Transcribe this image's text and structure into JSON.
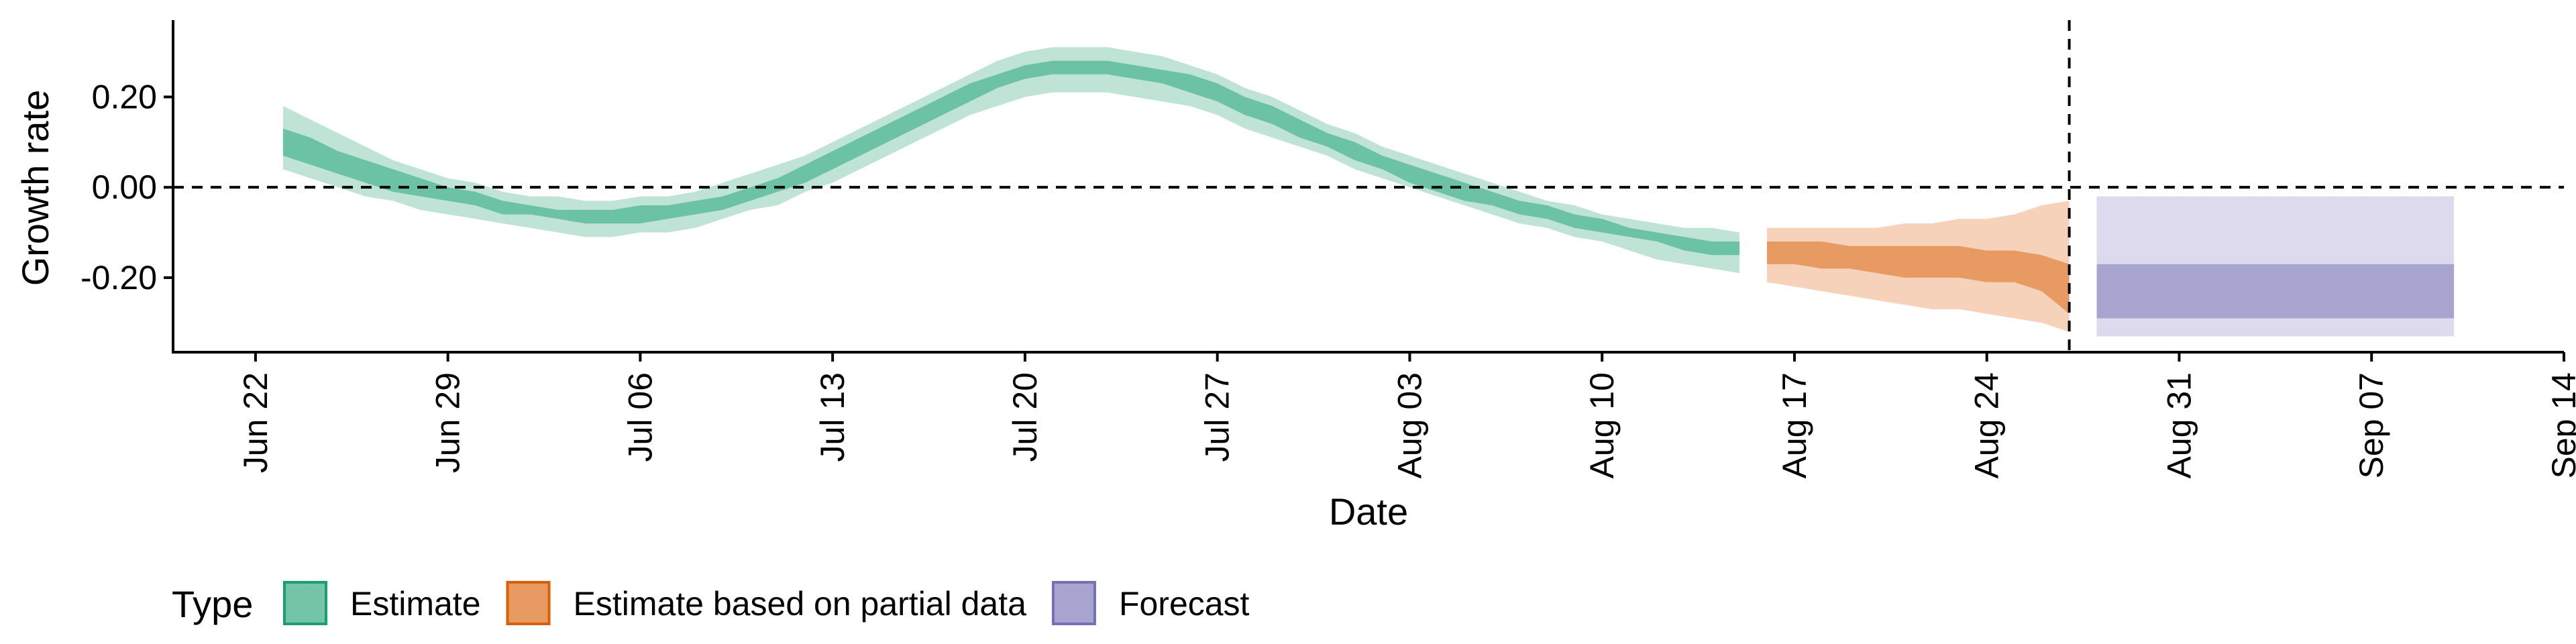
{
  "chart_data": {
    "type": "area",
    "xlabel": "Date",
    "ylabel": "Growth rate",
    "x_ticks": [
      "2020-06-22",
      "2020-06-29",
      "2020-07-06",
      "2020-07-13",
      "2020-07-20",
      "2020-07-27",
      "2020-08-03",
      "2020-08-10",
      "2020-08-17",
      "2020-08-24",
      "2020-08-31",
      "2020-09-07",
      "2020-09-14"
    ],
    "x_tick_labels": [
      "Jun 22",
      "Jun 29",
      "Jul 06",
      "Jul 13",
      "Jul 20",
      "Jul 27",
      "Aug 03",
      "Aug 10",
      "Aug 17",
      "Aug 24",
      "Aug 31",
      "Sep 07",
      "Sep 14"
    ],
    "y_ticks": [
      0.2,
      0.0,
      -0.2
    ],
    "y_tick_labels": [
      "0.20",
      "0.00",
      "-0.20"
    ],
    "xlim": [
      "2020-06-19",
      "2020-09-14"
    ],
    "ylim": [
      -0.365,
      0.37
    ],
    "grid": false,
    "reference_lines": [
      {
        "axis": "y",
        "value": 0.0,
        "style": "dashed"
      },
      {
        "axis": "x",
        "value": "2020-08-27",
        "style": "dashed"
      }
    ],
    "legend": {
      "title": "Type",
      "position": "bottom",
      "entries": [
        {
          "label": "Estimate",
          "fill": "#74c4a8",
          "stroke": "#1b9e77"
        },
        {
          "label": "Estimate based on partial data",
          "fill": "#e89a63",
          "stroke": "#d95f02"
        },
        {
          "label": "Forecast",
          "fill": "#a8a4d0",
          "stroke": "#7570b3"
        }
      ]
    },
    "series": [
      {
        "name": "Estimate",
        "color": "#1b9e77",
        "inner_color": "#6cc2a4",
        "outer_color": "#bfe3d5",
        "points": [
          {
            "x": "2020-06-23",
            "outer": [
              0.04,
              0.18
            ],
            "inner": [
              0.07,
              0.13
            ]
          },
          {
            "x": "2020-06-24",
            "outer": [
              0.02,
              0.15
            ],
            "inner": [
              0.05,
              0.11
            ]
          },
          {
            "x": "2020-06-25",
            "outer": [
              0.0,
              0.12
            ],
            "inner": [
              0.03,
              0.08
            ]
          },
          {
            "x": "2020-06-26",
            "outer": [
              -0.02,
              0.09
            ],
            "inner": [
              0.01,
              0.06
            ]
          },
          {
            "x": "2020-06-27",
            "outer": [
              -0.03,
              0.06
            ],
            "inner": [
              -0.01,
              0.04
            ]
          },
          {
            "x": "2020-06-28",
            "outer": [
              -0.05,
              0.04
            ],
            "inner": [
              -0.02,
              0.02
            ]
          },
          {
            "x": "2020-06-29",
            "outer": [
              -0.06,
              0.02
            ],
            "inner": [
              -0.03,
              0.0
            ]
          },
          {
            "x": "2020-06-30",
            "outer": [
              -0.07,
              0.01
            ],
            "inner": [
              -0.04,
              -0.01
            ]
          },
          {
            "x": "2020-07-01",
            "outer": [
              -0.08,
              -0.01
            ],
            "inner": [
              -0.06,
              -0.03
            ]
          },
          {
            "x": "2020-07-02",
            "outer": [
              -0.09,
              -0.02
            ],
            "inner": [
              -0.06,
              -0.04
            ]
          },
          {
            "x": "2020-07-03",
            "outer": [
              -0.1,
              -0.02
            ],
            "inner": [
              -0.07,
              -0.05
            ]
          },
          {
            "x": "2020-07-04",
            "outer": [
              -0.11,
              -0.03
            ],
            "inner": [
              -0.08,
              -0.05
            ]
          },
          {
            "x": "2020-07-05",
            "outer": [
              -0.11,
              -0.03
            ],
            "inner": [
              -0.08,
              -0.05
            ]
          },
          {
            "x": "2020-07-06",
            "outer": [
              -0.1,
              -0.02
            ],
            "inner": [
              -0.08,
              -0.04
            ]
          },
          {
            "x": "2020-07-07",
            "outer": [
              -0.1,
              -0.02
            ],
            "inner": [
              -0.07,
              -0.04
            ]
          },
          {
            "x": "2020-07-08",
            "outer": [
              -0.09,
              -0.01
            ],
            "inner": [
              -0.06,
              -0.03
            ]
          },
          {
            "x": "2020-07-09",
            "outer": [
              -0.07,
              0.01
            ],
            "inner": [
              -0.05,
              -0.02
            ]
          },
          {
            "x": "2020-07-10",
            "outer": [
              -0.05,
              0.03
            ],
            "inner": [
              -0.03,
              0.0
            ]
          },
          {
            "x": "2020-07-11",
            "outer": [
              -0.04,
              0.05
            ],
            "inner": [
              -0.01,
              0.02
            ]
          },
          {
            "x": "2020-07-12",
            "outer": [
              -0.01,
              0.07
            ],
            "inner": [
              0.01,
              0.05
            ]
          },
          {
            "x": "2020-07-13",
            "outer": [
              0.01,
              0.1
            ],
            "inner": [
              0.04,
              0.08
            ]
          },
          {
            "x": "2020-07-14",
            "outer": [
              0.04,
              0.13
            ],
            "inner": [
              0.07,
              0.11
            ]
          },
          {
            "x": "2020-07-15",
            "outer": [
              0.07,
              0.16
            ],
            "inner": [
              0.1,
              0.14
            ]
          },
          {
            "x": "2020-07-16",
            "outer": [
              0.1,
              0.19
            ],
            "inner": [
              0.13,
              0.17
            ]
          },
          {
            "x": "2020-07-17",
            "outer": [
              0.13,
              0.22
            ],
            "inner": [
              0.16,
              0.2
            ]
          },
          {
            "x": "2020-07-18",
            "outer": [
              0.16,
              0.25
            ],
            "inner": [
              0.19,
              0.23
            ]
          },
          {
            "x": "2020-07-19",
            "outer": [
              0.18,
              0.28
            ],
            "inner": [
              0.22,
              0.25
            ]
          },
          {
            "x": "2020-07-20",
            "outer": [
              0.2,
              0.3
            ],
            "inner": [
              0.24,
              0.27
            ]
          },
          {
            "x": "2020-07-21",
            "outer": [
              0.21,
              0.31
            ],
            "inner": [
              0.25,
              0.28
            ]
          },
          {
            "x": "2020-07-22",
            "outer": [
              0.21,
              0.31
            ],
            "inner": [
              0.25,
              0.28
            ]
          },
          {
            "x": "2020-07-23",
            "outer": [
              0.21,
              0.31
            ],
            "inner": [
              0.25,
              0.28
            ]
          },
          {
            "x": "2020-07-24",
            "outer": [
              0.2,
              0.3
            ],
            "inner": [
              0.24,
              0.27
            ]
          },
          {
            "x": "2020-07-25",
            "outer": [
              0.19,
              0.29
            ],
            "inner": [
              0.23,
              0.26
            ]
          },
          {
            "x": "2020-07-26",
            "outer": [
              0.18,
              0.27
            ],
            "inner": [
              0.21,
              0.25
            ]
          },
          {
            "x": "2020-07-27",
            "outer": [
              0.16,
              0.25
            ],
            "inner": [
              0.19,
              0.23
            ]
          },
          {
            "x": "2020-07-28",
            "outer": [
              0.13,
              0.22
            ],
            "inner": [
              0.16,
              0.2
            ]
          },
          {
            "x": "2020-07-29",
            "outer": [
              0.11,
              0.2
            ],
            "inner": [
              0.14,
              0.18
            ]
          },
          {
            "x": "2020-07-30",
            "outer": [
              0.09,
              0.17
            ],
            "inner": [
              0.11,
              0.15
            ]
          },
          {
            "x": "2020-07-31",
            "outer": [
              0.07,
              0.14
            ],
            "inner": [
              0.09,
              0.12
            ]
          },
          {
            "x": "2020-08-01",
            "outer": [
              0.04,
              0.12
            ],
            "inner": [
              0.06,
              0.1
            ]
          },
          {
            "x": "2020-08-02",
            "outer": [
              0.02,
              0.09
            ],
            "inner": [
              0.04,
              0.07
            ]
          },
          {
            "x": "2020-08-03",
            "outer": [
              0.0,
              0.07
            ],
            "inner": [
              0.01,
              0.05
            ]
          },
          {
            "x": "2020-08-04",
            "outer": [
              -0.02,
              0.05
            ],
            "inner": [
              -0.01,
              0.03
            ]
          },
          {
            "x": "2020-08-05",
            "outer": [
              -0.04,
              0.03
            ],
            "inner": [
              -0.03,
              0.01
            ]
          },
          {
            "x": "2020-08-06",
            "outer": [
              -0.06,
              0.01
            ],
            "inner": [
              -0.04,
              -0.01
            ]
          },
          {
            "x": "2020-08-07",
            "outer": [
              -0.08,
              -0.01
            ],
            "inner": [
              -0.06,
              -0.03
            ]
          },
          {
            "x": "2020-08-08",
            "outer": [
              -0.09,
              -0.03
            ],
            "inner": [
              -0.07,
              -0.04
            ]
          },
          {
            "x": "2020-08-09",
            "outer": [
              -0.11,
              -0.04
            ],
            "inner": [
              -0.09,
              -0.06
            ]
          },
          {
            "x": "2020-08-10",
            "outer": [
              -0.12,
              -0.06
            ],
            "inner": [
              -0.1,
              -0.07
            ]
          },
          {
            "x": "2020-08-11",
            "outer": [
              -0.14,
              -0.07
            ],
            "inner": [
              -0.11,
              -0.09
            ]
          },
          {
            "x": "2020-08-12",
            "outer": [
              -0.16,
              -0.08
            ],
            "inner": [
              -0.12,
              -0.1
            ]
          },
          {
            "x": "2020-08-13",
            "outer": [
              -0.17,
              -0.09
            ],
            "inner": [
              -0.14,
              -0.11
            ]
          },
          {
            "x": "2020-08-14",
            "outer": [
              -0.18,
              -0.09
            ],
            "inner": [
              -0.15,
              -0.12
            ]
          },
          {
            "x": "2020-08-15",
            "outer": [
              -0.19,
              -0.1
            ],
            "inner": [
              -0.15,
              -0.12
            ]
          }
        ]
      },
      {
        "name": "Estimate based on partial data",
        "color": "#d95f02",
        "inner_color": "#e89a63",
        "outer_color": "#f6d2ba",
        "points": [
          {
            "x": "2020-08-16",
            "outer": [
              -0.21,
              -0.09
            ],
            "inner": [
              -0.17,
              -0.12
            ]
          },
          {
            "x": "2020-08-17",
            "outer": [
              -0.22,
              -0.09
            ],
            "inner": [
              -0.17,
              -0.12
            ]
          },
          {
            "x": "2020-08-18",
            "outer": [
              -0.23,
              -0.09
            ],
            "inner": [
              -0.18,
              -0.12
            ]
          },
          {
            "x": "2020-08-19",
            "outer": [
              -0.24,
              -0.09
            ],
            "inner": [
              -0.18,
              -0.13
            ]
          },
          {
            "x": "2020-08-20",
            "outer": [
              -0.25,
              -0.09
            ],
            "inner": [
              -0.19,
              -0.13
            ]
          },
          {
            "x": "2020-08-21",
            "outer": [
              -0.26,
              -0.08
            ],
            "inner": [
              -0.2,
              -0.13
            ]
          },
          {
            "x": "2020-08-22",
            "outer": [
              -0.27,
              -0.08
            ],
            "inner": [
              -0.2,
              -0.13
            ]
          },
          {
            "x": "2020-08-23",
            "outer": [
              -0.27,
              -0.07
            ],
            "inner": [
              -0.2,
              -0.13
            ]
          },
          {
            "x": "2020-08-24",
            "outer": [
              -0.28,
              -0.07
            ],
            "inner": [
              -0.21,
              -0.14
            ]
          },
          {
            "x": "2020-08-25",
            "outer": [
              -0.29,
              -0.06
            ],
            "inner": [
              -0.21,
              -0.14
            ]
          },
          {
            "x": "2020-08-26",
            "outer": [
              -0.3,
              -0.04
            ],
            "inner": [
              -0.23,
              -0.15
            ]
          },
          {
            "x": "2020-08-27",
            "outer": [
              -0.32,
              -0.03
            ],
            "inner": [
              -0.28,
              -0.17
            ]
          }
        ]
      },
      {
        "name": "Forecast",
        "color": "#7570b3",
        "inner_color": "#a8a4d0",
        "outer_color": "#dcdaec",
        "points": [
          {
            "x": "2020-08-28",
            "outer": [
              -0.33,
              -0.02
            ],
            "inner": [
              -0.29,
              -0.17
            ]
          },
          {
            "x": "2020-09-10",
            "outer": [
              -0.33,
              -0.02
            ],
            "inner": [
              -0.29,
              -0.17
            ]
          }
        ]
      }
    ]
  }
}
